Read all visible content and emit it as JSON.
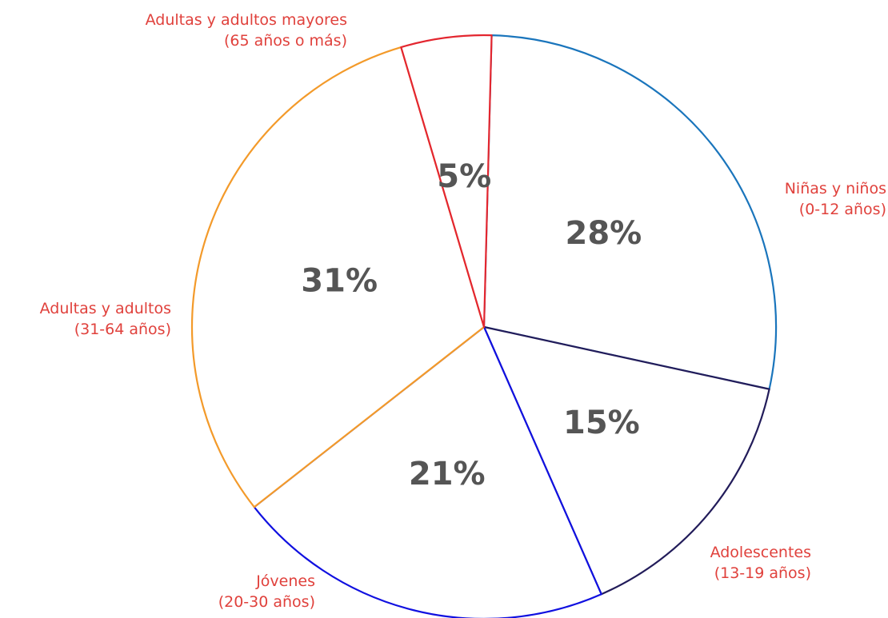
{
  "chart_data": {
    "type": "pie",
    "title": "",
    "slices": [
      {
        "label_line1": "Niñas y niños",
        "label_line2": "(0-12 años)",
        "value": 28,
        "value_label": "28%",
        "color": "#1a75bc"
      },
      {
        "label_line1": "Adolescentes",
        "label_line2": "(13-19 años)",
        "value": 15,
        "value_label": "15%",
        "color": "#221c5a"
      },
      {
        "label_line1": "Jóvenes",
        "label_line2": "(20-30 años)",
        "value": 21,
        "value_label": "21%",
        "color": "#1010e0"
      },
      {
        "label_line1": "Adultas y adultos",
        "label_line2": "(31-64 años)",
        "value": 31,
        "value_label": "31%",
        "color": "#f39a2a"
      },
      {
        "label_line1": "Adultas y adultos mayores",
        "label_line2": "(65 años o más)",
        "value": 5,
        "value_label": "5%",
        "color": "#e3262f"
      }
    ],
    "label_color": "#e0413c",
    "value_label_color": "#555555"
  }
}
